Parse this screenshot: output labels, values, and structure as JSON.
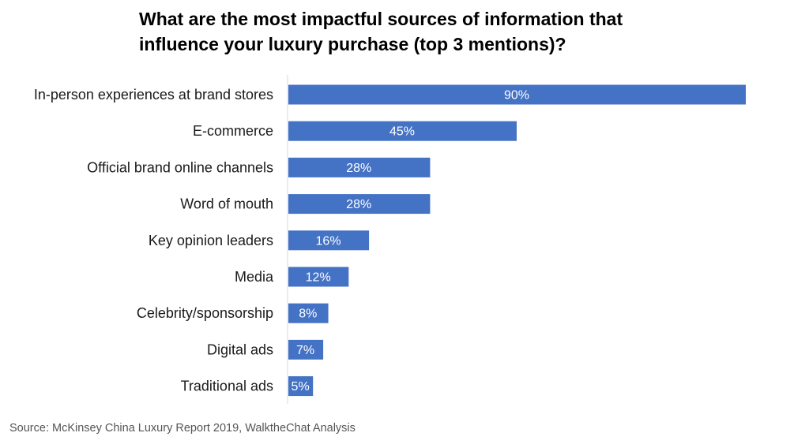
{
  "chart_data": {
    "type": "bar",
    "orientation": "horizontal",
    "title_lines": [
      "What are the most impactful sources of information that",
      "influence your luxury purchase (top 3 mentions)?"
    ],
    "categories": [
      "In-person experiences at brand stores",
      "E-commerce",
      "Official brand online channels",
      "Word of mouth",
      "Key opinion leaders",
      "Media",
      "Celebrity/sponsorship",
      "Digital ads",
      "Traditional ads"
    ],
    "values": [
      90,
      45,
      28,
      28,
      16,
      12,
      8,
      7,
      5
    ],
    "value_labels": [
      "90%",
      "45%",
      "28%",
      "28%",
      "16%",
      "12%",
      "8%",
      "7%",
      "5%"
    ],
    "xlim": [
      0,
      90
    ],
    "grid": false,
    "legend": "none",
    "bar_color": "#4472C4",
    "axis_color": "#D9D9D9",
    "xlabel": "",
    "ylabel": ""
  },
  "source": "Source: McKinsey China Luxury Report 2019, WalktheChat Analysis"
}
